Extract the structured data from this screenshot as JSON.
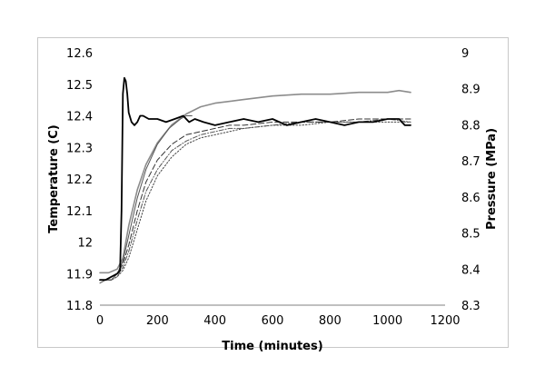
{
  "chart_data": {
    "type": "line",
    "title": "",
    "xlabel": "Time (minutes)",
    "ylabel": "Temperature (C)",
    "y2label": "Pressure (MPa)",
    "xlim": [
      0,
      1200
    ],
    "ylim": [
      11.8,
      12.6
    ],
    "y2lim": [
      8.3,
      9.0
    ],
    "x_ticks": [
      "0",
      "200",
      "400",
      "600",
      "800",
      "1000",
      "1200"
    ],
    "y_ticks": [
      "11.8",
      "11.9",
      "12",
      "12.1",
      "12.2",
      "12.3",
      "12.4",
      "12.5",
      "12.6"
    ],
    "y2_ticks": [
      "8.3",
      "8.4",
      "8.5",
      "8.6",
      "8.7",
      "8.8",
      "8.9",
      "9"
    ],
    "grid": false,
    "legend": "none",
    "series": [
      {
        "axis": "left",
        "style": "solid-bold",
        "color": "#000000",
        "x": [
          0,
          20,
          40,
          60,
          70,
          75,
          80,
          85,
          90,
          95,
          100,
          110,
          120,
          130,
          140,
          150,
          170,
          200,
          230,
          260,
          290,
          300,
          310,
          330,
          360,
          400,
          450,
          500,
          550,
          600,
          650,
          700,
          750,
          800,
          850,
          900,
          950,
          1000,
          1040,
          1060,
          1070,
          1080
        ],
        "y": [
          11.88,
          11.88,
          11.89,
          11.9,
          11.91,
          12.1,
          12.47,
          12.52,
          12.51,
          12.47,
          12.41,
          12.38,
          12.37,
          12.38,
          12.4,
          12.4,
          12.39,
          12.39,
          12.38,
          12.39,
          12.4,
          12.39,
          12.38,
          12.39,
          12.38,
          12.37,
          12.38,
          12.39,
          12.38,
          12.39,
          12.37,
          12.38,
          12.39,
          12.38,
          12.37,
          12.38,
          12.38,
          12.39,
          12.39,
          12.37,
          12.37,
          12.37
        ]
      },
      {
        "axis": "left",
        "style": "solid-thin",
        "color": "#555555",
        "x": [
          0,
          20,
          40,
          60,
          80,
          100,
          130,
          160,
          200,
          240,
          280,
          300,
          320
        ],
        "y": [
          11.87,
          11.88,
          11.88,
          11.9,
          11.94,
          12.02,
          12.14,
          12.23,
          12.31,
          12.36,
          12.39,
          12.4,
          12.4
        ]
      },
      {
        "axis": "left",
        "style": "dashed",
        "color": "#333333",
        "x": [
          0,
          20,
          40,
          60,
          80,
          100,
          130,
          160,
          200,
          250,
          300,
          350,
          400,
          450,
          500,
          600,
          700,
          800,
          900,
          1000,
          1080
        ],
        "y": [
          11.88,
          11.88,
          11.88,
          11.9,
          11.93,
          11.99,
          12.1,
          12.19,
          12.26,
          12.31,
          12.34,
          12.35,
          12.36,
          12.37,
          12.37,
          12.38,
          12.38,
          12.38,
          12.39,
          12.39,
          12.39
        ]
      },
      {
        "axis": "left",
        "style": "dash-dot",
        "color": "#555555",
        "x": [
          0,
          20,
          40,
          60,
          80,
          100,
          130,
          160,
          200,
          250,
          300,
          350,
          400,
          450,
          500,
          600,
          700,
          800,
          900,
          1000,
          1080
        ],
        "y": [
          11.88,
          11.88,
          11.88,
          11.89,
          11.92,
          11.97,
          12.07,
          12.16,
          12.23,
          12.29,
          12.32,
          12.34,
          12.35,
          12.36,
          12.36,
          12.37,
          12.38,
          12.38,
          12.38,
          12.39,
          12.38
        ]
      },
      {
        "axis": "left",
        "style": "dotted",
        "color": "#444444",
        "x": [
          0,
          20,
          40,
          60,
          80,
          100,
          130,
          160,
          200,
          250,
          300,
          350,
          400,
          450,
          500,
          600,
          700,
          800,
          900,
          1000,
          1080
        ],
        "y": [
          11.88,
          11.88,
          11.88,
          11.89,
          11.91,
          11.95,
          12.04,
          12.13,
          12.21,
          12.27,
          12.31,
          12.33,
          12.34,
          12.35,
          12.36,
          12.37,
          12.37,
          12.38,
          12.38,
          12.38,
          12.38
        ]
      },
      {
        "axis": "right",
        "style": "solid-grey",
        "color": "#8c8c8c",
        "x": [
          0,
          30,
          60,
          80,
          100,
          130,
          160,
          200,
          250,
          300,
          350,
          400,
          500,
          600,
          700,
          800,
          900,
          1000,
          1040,
          1080
        ],
        "y": [
          8.39,
          8.39,
          8.4,
          8.43,
          8.52,
          8.62,
          8.69,
          8.75,
          8.8,
          8.83,
          8.85,
          8.86,
          8.87,
          8.88,
          8.885,
          8.885,
          8.89,
          8.89,
          8.895,
          8.89
        ]
      }
    ]
  }
}
